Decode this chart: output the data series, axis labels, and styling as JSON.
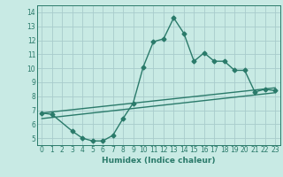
{
  "bg_color": "#c8eae4",
  "grid_color": "#a8cccc",
  "line_color": "#2a7a6a",
  "xlabel": "Humidex (Indice chaleur)",
  "xlim": [
    -0.5,
    23.5
  ],
  "ylim": [
    4.5,
    14.5
  ],
  "xticks": [
    0,
    1,
    2,
    3,
    4,
    5,
    6,
    7,
    8,
    9,
    10,
    11,
    12,
    13,
    14,
    15,
    16,
    17,
    18,
    19,
    20,
    21,
    22,
    23
  ],
  "yticks": [
    5,
    6,
    7,
    8,
    9,
    10,
    11,
    12,
    13,
    14
  ],
  "line1_x": [
    0,
    1,
    3,
    4,
    5,
    6,
    7,
    8,
    9,
    10,
    11,
    12,
    13,
    14,
    15,
    16,
    17,
    18,
    19,
    20,
    21,
    22,
    23
  ],
  "line1_y": [
    6.8,
    6.7,
    5.5,
    5.0,
    4.8,
    4.8,
    5.2,
    6.4,
    7.5,
    10.1,
    11.9,
    12.1,
    13.6,
    12.5,
    10.5,
    11.1,
    10.5,
    10.5,
    9.85,
    9.85,
    8.3,
    8.5,
    8.4
  ],
  "line2_x": [
    0,
    23
  ],
  "line2_y": [
    6.8,
    8.6
  ],
  "line3_x": [
    0,
    23
  ],
  "line3_y": [
    6.4,
    8.25
  ],
  "marker_style": "D",
  "marker_size": 2.5,
  "line_width": 1.0
}
